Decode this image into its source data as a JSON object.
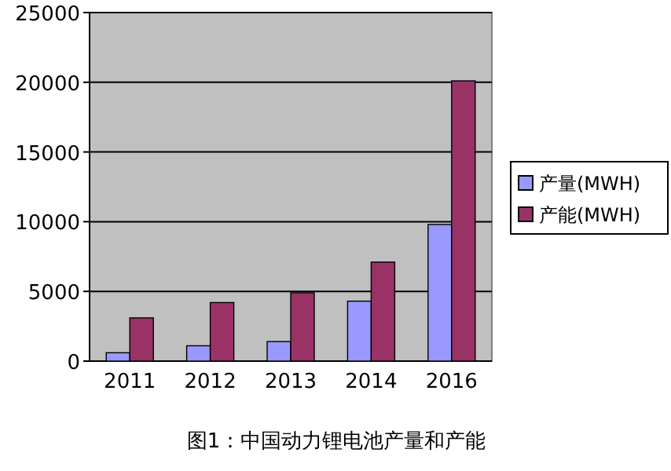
{
  "chart_data": {
    "type": "bar",
    "title": "图1：中国动力锂电池产量和产能",
    "categories": [
      "2011",
      "2012",
      "2013",
      "2014",
      "2016"
    ],
    "series": [
      {
        "name": "产量(MWH)",
        "color": "#9999ff",
        "values": [
          600,
          1100,
          1400,
          4300,
          9800
        ]
      },
      {
        "name": "产能(MWH)",
        "color": "#993366",
        "values": [
          3100,
          4200,
          4900,
          7100,
          20100
        ]
      }
    ],
    "ylim": [
      0,
      25000
    ],
    "yticks": [
      0,
      5000,
      10000,
      15000,
      20000,
      25000
    ],
    "grid": "y",
    "legend": "right"
  }
}
